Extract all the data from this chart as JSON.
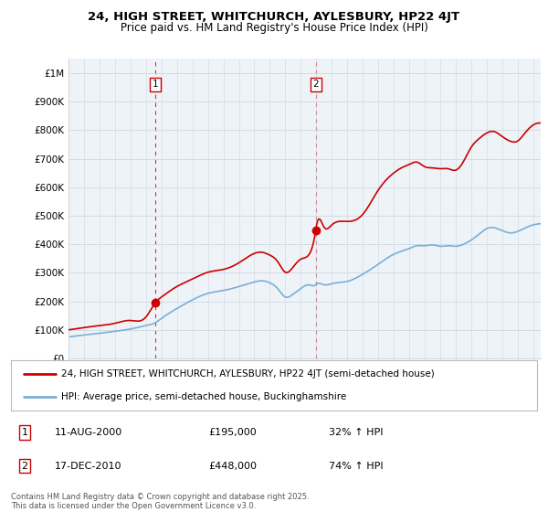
{
  "title": "24, HIGH STREET, WHITCHURCH, AYLESBURY, HP22 4JT",
  "subtitle": "Price paid vs. HM Land Registry's House Price Index (HPI)",
  "ylim": [
    0,
    1050000
  ],
  "yticks": [
    0,
    100000,
    200000,
    300000,
    400000,
    500000,
    600000,
    700000,
    800000,
    900000,
    1000000
  ],
  "ytick_labels": [
    "£0",
    "£100K",
    "£200K",
    "£300K",
    "£400K",
    "£500K",
    "£600K",
    "£700K",
    "£800K",
    "£900K",
    "£1M"
  ],
  "purchase1_date": 2000.6,
  "purchase1_price": 195000,
  "purchase2_date": 2010.96,
  "purchase2_price": 448000,
  "legend_line1": "24, HIGH STREET, WHITCHURCH, AYLESBURY, HP22 4JT (semi-detached house)",
  "legend_line2": "HPI: Average price, semi-detached house, Buckinghamshire",
  "table_row1": [
    "1",
    "11-AUG-2000",
    "£195,000",
    "32% ↑ HPI"
  ],
  "table_row2": [
    "2",
    "17-DEC-2010",
    "£448,000",
    "74% ↑ HPI"
  ],
  "footer": "Contains HM Land Registry data © Crown copyright and database right 2025.\nThis data is licensed under the Open Government Licence v3.0.",
  "line_color_red": "#cc0000",
  "line_color_blue": "#7bafd4",
  "bg_color": "#ffffff",
  "grid_color": "#d0d8e0",
  "chart_bg": "#eef3f8"
}
